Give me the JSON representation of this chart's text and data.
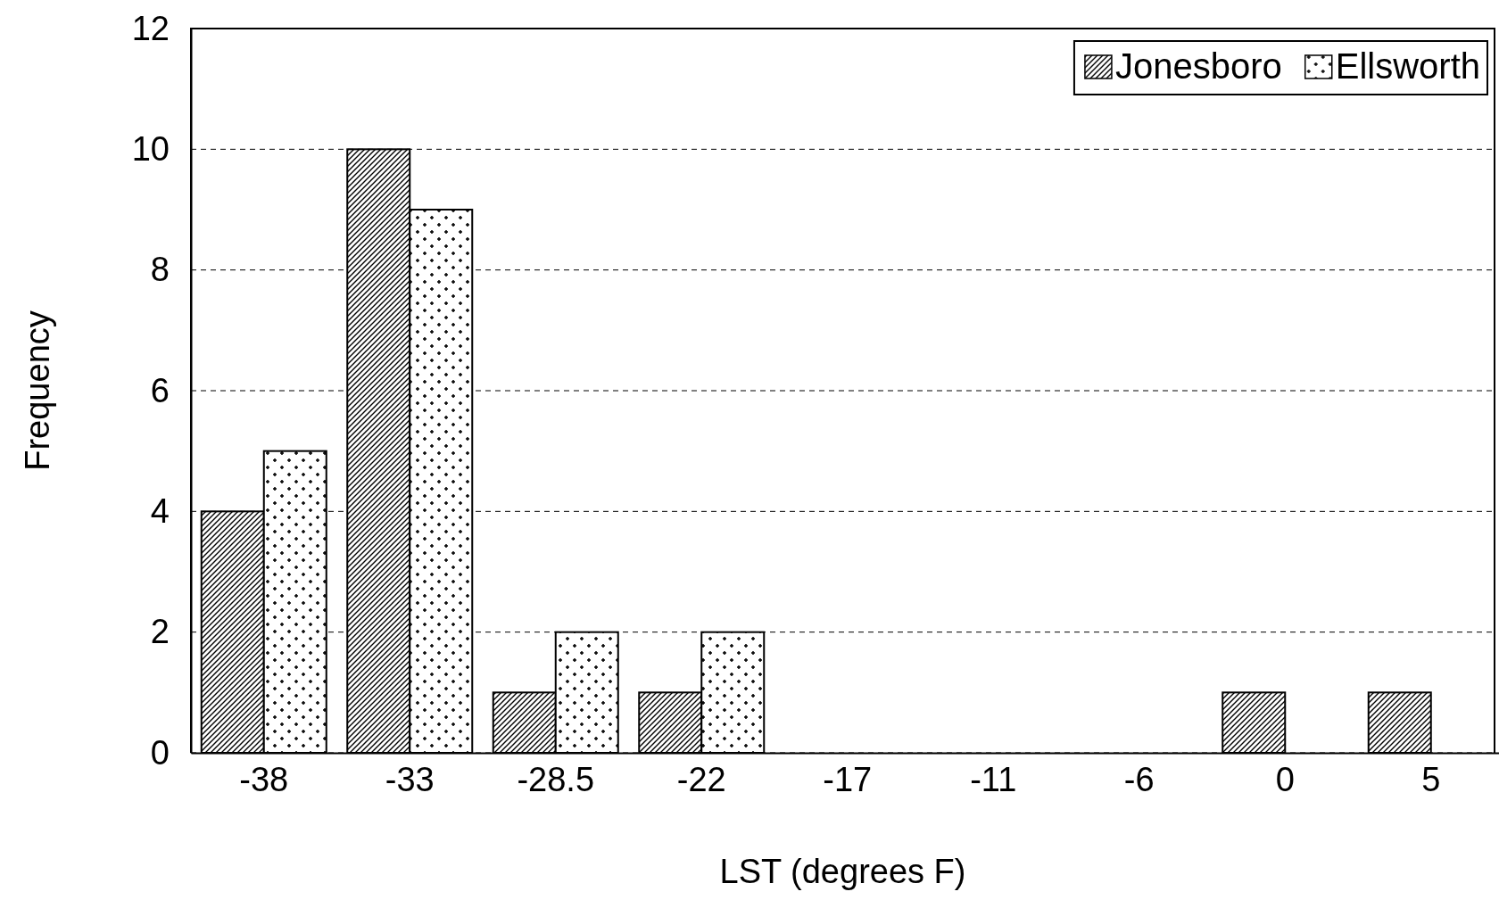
{
  "chart_data": {
    "type": "bar",
    "xlabel": "LST (degrees F)",
    "ylabel": "Frequency",
    "categories": [
      "-38",
      "-33",
      "-28.5",
      "-22",
      "-17",
      "-11",
      "-6",
      "0",
      "5"
    ],
    "series": [
      {
        "name": "Jonesboro",
        "color": "#000000",
        "values": [
          4,
          10,
          1,
          1,
          0,
          0,
          0,
          1,
          1
        ]
      },
      {
        "name": "Ellsworth",
        "color": "#000000",
        "values": [
          5,
          9,
          2,
          2,
          0,
          0,
          0,
          0,
          0
        ]
      }
    ],
    "ylim": [
      0,
      12
    ],
    "yticks": [
      0,
      2,
      4,
      6,
      8,
      10,
      12
    ],
    "grid": "y",
    "legend": "top right"
  }
}
